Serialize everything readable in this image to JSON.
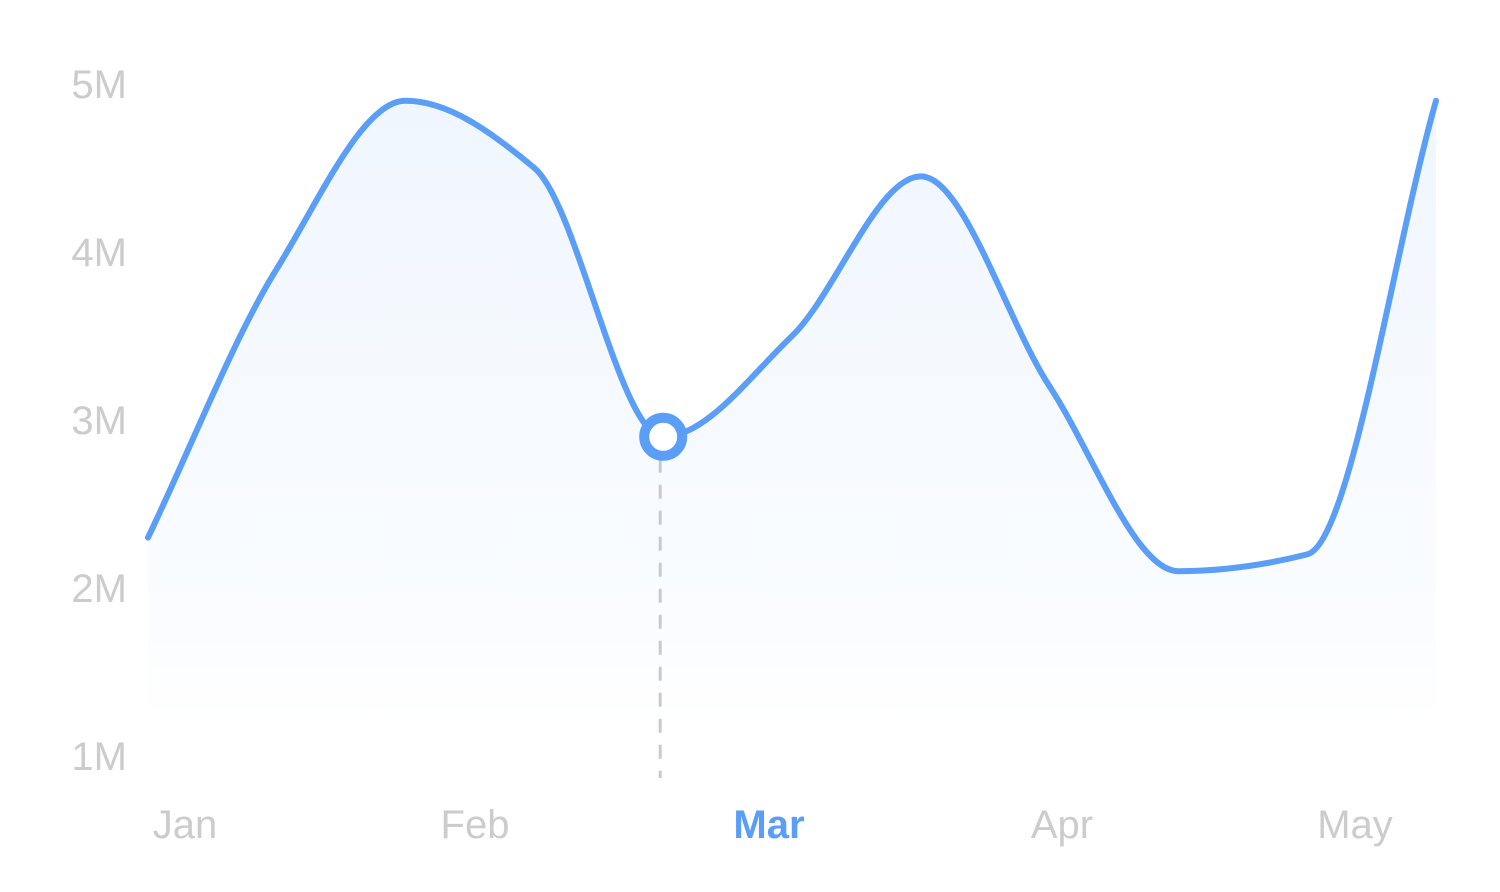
{
  "chart_data": {
    "type": "area",
    "categories": [
      "Jan",
      "Feb",
      "Mar",
      "Apr",
      "May"
    ],
    "x": [
      0,
      0.5,
      1,
      1.5,
      2,
      2.5,
      3,
      3.5,
      4,
      4.5,
      5
    ],
    "series": [
      {
        "values": [
          2.3,
          3.9,
          4.9,
          4.5,
          2.9,
          3.5,
          4.45,
          3.2,
          2.1,
          2.2,
          4.9
        ]
      }
    ],
    "y_ticks": [
      "1M",
      "2M",
      "3M",
      "4M",
      "5M"
    ],
    "ylim": [
      1,
      5
    ],
    "highlight": {
      "category": "Mar",
      "value": 2.9
    },
    "grid": false,
    "colors": {
      "line": "#5A9EF7",
      "fill": "#EEF5FE",
      "tick_label": "#CCCCCC",
      "active_tick_label": "#5A9EF7",
      "guide": "#C8CACF"
    }
  }
}
